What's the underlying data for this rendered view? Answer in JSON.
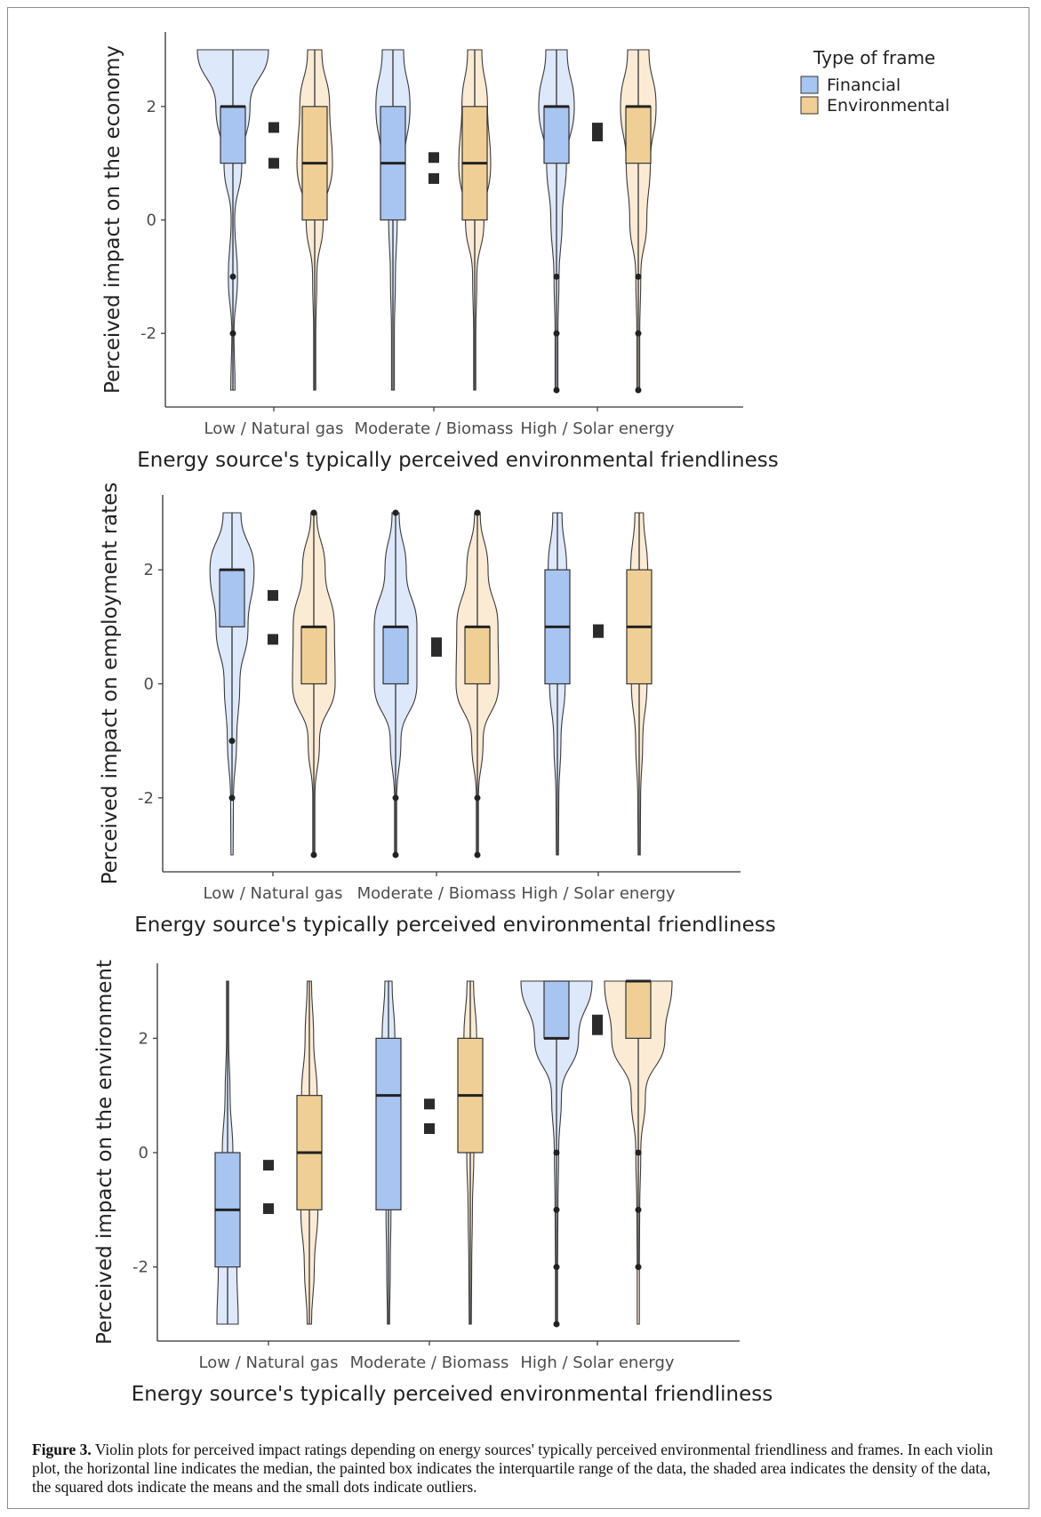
{
  "legend": {
    "title": "Type of frame",
    "items": [
      {
        "label": "Financial",
        "fill": "#a8c4f0",
        "violin": "#dde8fb"
      },
      {
        "label": "Environmental",
        "fill": "#f0cf96",
        "violin": "#fbebd4"
      }
    ]
  },
  "caption": {
    "label": "Figure 3.",
    "text": " Violin plots for perceived impact ratings depending on energy sources' typically perceived environmental friendliness and frames. In each violin plot, the horizontal line indicates the median, the painted box indicates the interquartile range of the data, the shaded area indicates the density of the data, the squared dots indicate the means and the small dots indicate outliers."
  },
  "chart_data": [
    {
      "type": "violin",
      "xlabel": "Energy source's typically perceived environmental friendliness",
      "ylabel": "Perceived impact on the economy",
      "ylim": [
        -3,
        3
      ],
      "yticks": [
        2,
        0,
        -2
      ],
      "categories": [
        "Low / Natural gas",
        "Moderate / Biomass",
        "High / Solar energy"
      ],
      "series": [
        {
          "name": "Financial",
          "groups": [
            {
              "median": 2,
              "q1": 1,
              "q3": 2,
              "whisker": [
                -3,
                3
              ],
              "mean": 1.63,
              "outliers": [
                -1,
                -2
              ],
              "density": [
                0.06,
                0.03,
                0.13,
                0.05,
                0.25,
                0.48,
                1.0
              ]
            },
            {
              "median": 1,
              "q1": 0,
              "q3": 2,
              "whisker": [
                -3,
                3
              ],
              "mean": 1.1,
              "outliers": [],
              "density": [
                0.04,
                0.04,
                0.07,
                0.12,
                0.32,
                0.48,
                0.3
              ]
            },
            {
              "median": 2,
              "q1": 1,
              "q3": 2,
              "whisker": [
                -3,
                3
              ],
              "mean": 1.62,
              "outliers": [
                -1,
                -2,
                -3
              ],
              "density": [
                0.04,
                0.04,
                0.07,
                0.16,
                0.28,
                0.5,
                0.3
              ]
            }
          ]
        },
        {
          "name": "Environmental",
          "groups": [
            {
              "median": 1,
              "q1": 0,
              "q3": 2,
              "whisker": [
                -3,
                3
              ],
              "mean": 1.0,
              "outliers": [],
              "density": [
                0.03,
                0.03,
                0.06,
                0.24,
                0.5,
                0.42,
                0.2
              ]
            },
            {
              "median": 1,
              "q1": 0,
              "q3": 2,
              "whisker": [
                -3,
                3
              ],
              "mean": 0.73,
              "outliers": [],
              "density": [
                0.03,
                0.03,
                0.06,
                0.26,
                0.45,
                0.36,
                0.2
              ]
            },
            {
              "median": 2,
              "q1": 1,
              "q3": 2,
              "whisker": [
                -3,
                3
              ],
              "mean": 1.48,
              "outliers": [
                -1,
                -2,
                -3
              ],
              "density": [
                0.04,
                0.04,
                0.07,
                0.24,
                0.34,
                0.5,
                0.3
              ]
            }
          ]
        }
      ],
      "legend": "top-right"
    },
    {
      "type": "violin",
      "xlabel": "Energy source's typically perceived environmental friendliness",
      "ylabel": "Perceived impact on employment rates",
      "ylim": [
        -3,
        3
      ],
      "yticks": [
        2,
        0,
        -2
      ],
      "categories": [
        "Low / Natural gas",
        "Moderate / Biomass",
        "High / Solar energy"
      ],
      "series": [
        {
          "name": "Financial",
          "groups": [
            {
              "median": 2,
              "q1": 1,
              "q3": 2,
              "whisker": [
                -2,
                3
              ],
              "mean": 1.55,
              "outliers": [
                -1,
                -2
              ],
              "density": [
                0,
                0.04,
                0.13,
                0.22,
                0.45,
                0.62,
                0.25
              ]
            },
            {
              "median": 1,
              "q1": 0,
              "q3": 1,
              "whisker": [
                -3,
                3
              ],
              "mean": 0.72,
              "outliers": [
                -2,
                -3,
                3
              ],
              "density": [
                0.03,
                0.03,
                0.15,
                0.6,
                0.6,
                0.3,
                0.1
              ]
            },
            {
              "median": 1,
              "q1": 0,
              "q3": 2,
              "whisker": [
                -3,
                3
              ],
              "mean": 0.95,
              "outliers": [],
              "density": [
                0.03,
                0.04,
                0.1,
                0.22,
                0.28,
                0.26,
                0.13
              ]
            }
          ]
        },
        {
          "name": "Environmental",
          "groups": [
            {
              "median": 1,
              "q1": 0,
              "q3": 1,
              "whisker": [
                -3,
                3
              ],
              "mean": 0.78,
              "outliers": [
                -3,
                3
              ],
              "density": [
                0.03,
                0.03,
                0.16,
                0.6,
                0.58,
                0.32,
                0.08
              ]
            },
            {
              "median": 1,
              "q1": 0,
              "q3": 1,
              "whisker": [
                -3,
                3
              ],
              "mean": 0.57,
              "outliers": [
                -2,
                -3,
                3
              ],
              "density": [
                0.03,
                0.03,
                0.16,
                0.6,
                0.58,
                0.3,
                0.08
              ]
            },
            {
              "median": 1,
              "q1": 0,
              "q3": 2,
              "whisker": [
                -3,
                3
              ],
              "mean": 0.9,
              "outliers": [],
              "density": [
                0.03,
                0.04,
                0.1,
                0.22,
                0.26,
                0.24,
                0.12
              ]
            }
          ]
        }
      ]
    },
    {
      "type": "violin",
      "xlabel": "Energy source's typically perceived environmental friendliness",
      "ylabel": "Perceived impact on the environment",
      "ylim": [
        -3,
        3
      ],
      "yticks": [
        2,
        0,
        -2
      ],
      "categories": [
        "Low / Natural gas",
        "Moderate / Biomass",
        "High / Solar energy"
      ],
      "series": [
        {
          "name": "Financial",
          "groups": [
            {
              "median": -1,
              "q1": -2,
              "q3": 0,
              "whisker": [
                -3,
                3
              ],
              "mean": -0.98,
              "outliers": [],
              "density": [
                0.3,
                0.26,
                0.22,
                0.15,
                0.07,
                0.03,
                0.02
              ]
            },
            {
              "median": 1,
              "q1": -1,
              "q3": 2,
              "whisker": [
                -3,
                3
              ],
              "mean": 0.85,
              "outliers": [],
              "density": [
                0.03,
                0.05,
                0.07,
                0.11,
                0.15,
                0.18,
                0.1
              ]
            },
            {
              "median": 2,
              "q1": 2,
              "q3": 3,
              "whisker": [
                -3,
                3
              ],
              "mean": 2.32,
              "outliers": [
                0,
                -1,
                -2,
                -3
              ],
              "density": [
                0.02,
                0.02,
                0.04,
                0.06,
                0.14,
                0.62,
                1.0
              ]
            }
          ]
        },
        {
          "name": "Environmental",
          "groups": [
            {
              "median": 0,
              "q1": -1,
              "q3": 1,
              "whisker": [
                -3,
                3
              ],
              "mean": -0.22,
              "outliers": [],
              "density": [
                0.06,
                0.14,
                0.24,
                0.28,
                0.22,
                0.12,
                0.06
              ]
            },
            {
              "median": 1,
              "q1": 0,
              "q3": 2,
              "whisker": [
                -3,
                3
              ],
              "mean": 0.42,
              "outliers": [],
              "density": [
                0.03,
                0.04,
                0.06,
                0.1,
                0.15,
                0.18,
                0.09
              ]
            },
            {
              "median": 3,
              "q1": 2,
              "q3": 3,
              "whisker": [
                -2,
                3
              ],
              "mean": 2.15,
              "outliers": [
                0,
                -1,
                -2
              ],
              "density": [
                0,
                0.02,
                0.04,
                0.07,
                0.2,
                0.75,
                0.95
              ]
            }
          ]
        }
      ]
    }
  ]
}
